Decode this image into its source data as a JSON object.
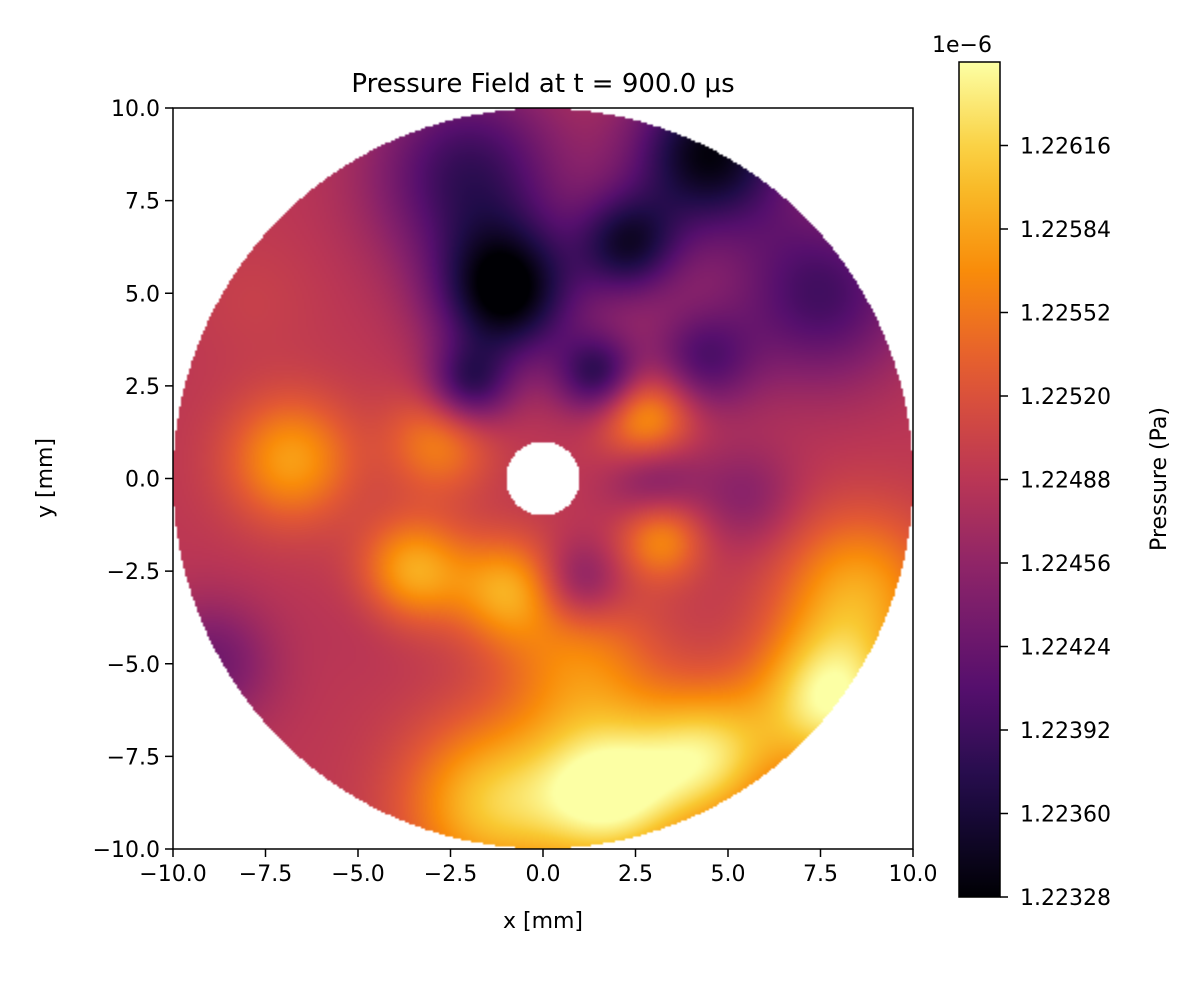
{
  "chart_data": {
    "type": "heatmap",
    "title": "Pressure Field at t = 900.0 µs",
    "xlabel": "x [mm]",
    "ylabel": "y [mm]",
    "xlim": [
      -10,
      10
    ],
    "ylim": [
      -10,
      10
    ],
    "x_ticks": [
      -10.0,
      -7.5,
      -5.0,
      -2.5,
      0.0,
      2.5,
      5.0,
      7.5,
      10.0
    ],
    "y_ticks": [
      -10.0,
      -7.5,
      -5.0,
      -2.5,
      0.0,
      2.5,
      5.0,
      7.5,
      10.0
    ],
    "x_tick_labels": [
      "−10.0",
      "−7.5",
      "−5.0",
      "−2.5",
      "0.0",
      "2.5",
      "5.0",
      "7.5",
      "10.0"
    ],
    "y_tick_labels": [
      "−10.0",
      "−7.5",
      "−5.0",
      "−2.5",
      "0.0",
      "2.5",
      "5.0",
      "7.5",
      "10.0"
    ],
    "domain": {
      "shape": "annulus",
      "outer_radius": 10,
      "inner_radius": 1
    },
    "colormap": "inferno",
    "colorbar": {
      "label": "Pressure (Pa)",
      "offset_text": "1e−6",
      "min": 1.22328,
      "max": 1.22648,
      "ticks": [
        1.22328,
        1.2236,
        1.22392,
        1.22424,
        1.22456,
        1.22488,
        1.2252,
        1.22552,
        1.22584,
        1.22616
      ],
      "tick_labels": [
        "1.22328",
        "1.22360",
        "1.22392",
        "1.22424",
        "1.22456",
        "1.22488",
        "1.22520",
        "1.22552",
        "1.22584",
        "1.22616"
      ]
    },
    "field_features": [
      {
        "x": -1.0,
        "y": 5.0,
        "sigma": 1.3,
        "value": 1.22328
      },
      {
        "x": 4.5,
        "y": 8.8,
        "sigma": 1.5,
        "value": 1.22335
      },
      {
        "x": 2.3,
        "y": 6.3,
        "sigma": 1.0,
        "value": 1.2237
      },
      {
        "x": -2.0,
        "y": 8.2,
        "sigma": 1.8,
        "value": 1.22385
      },
      {
        "x": 1.5,
        "y": 2.8,
        "sigma": 0.8,
        "value": 1.2238
      },
      {
        "x": -2.0,
        "y": 2.5,
        "sigma": 0.8,
        "value": 1.2239
      },
      {
        "x": 7.5,
        "y": 5.0,
        "sigma": 1.7,
        "value": 1.22395
      },
      {
        "x": 4.3,
        "y": 3.2,
        "sigma": 1.0,
        "value": 1.2241
      },
      {
        "x": 3.0,
        "y": 0.0,
        "sigma": 0.9,
        "value": 1.2243
      },
      {
        "x": 1.0,
        "y": -2.8,
        "sigma": 0.8,
        "value": 1.2243
      },
      {
        "x": 5.5,
        "y": -0.5,
        "sigma": 1.0,
        "value": 1.2245
      },
      {
        "x": -7.8,
        "y": 4.8,
        "sigma": 1.2,
        "value": 1.225
      },
      {
        "x": -9.0,
        "y": -5.0,
        "sigma": 1.2,
        "value": 1.2243
      },
      {
        "x": -4.5,
        "y": -3.5,
        "sigma": 1.0,
        "value": 1.2248
      },
      {
        "x": -6.8,
        "y": 0.5,
        "sigma": 1.2,
        "value": 1.2258
      },
      {
        "x": -3.5,
        "y": -2.5,
        "sigma": 1.0,
        "value": 1.2259
      },
      {
        "x": -1.0,
        "y": -3.0,
        "sigma": 1.0,
        "value": 1.2258
      },
      {
        "x": -2.8,
        "y": 1.0,
        "sigma": 1.0,
        "value": 1.2256
      },
      {
        "x": 2.8,
        "y": 1.6,
        "sigma": 0.9,
        "value": 1.2259
      },
      {
        "x": 3.2,
        "y": -1.6,
        "sigma": 0.8,
        "value": 1.2257
      },
      {
        "x": 1.0,
        "y": -5.0,
        "sigma": 1.5,
        "value": 1.2256
      },
      {
        "x": 8.5,
        "y": -3.0,
        "sigma": 1.5,
        "value": 1.2258
      },
      {
        "x": 7.8,
        "y": -6.0,
        "sigma": 1.4,
        "value": 1.2264
      },
      {
        "x": 1.8,
        "y": -8.5,
        "sigma": 1.5,
        "value": 1.22648
      },
      {
        "x": 4.5,
        "y": -7.5,
        "sigma": 1.3,
        "value": 1.2261
      },
      {
        "x": -1.5,
        "y": -8.8,
        "sigma": 1.6,
        "value": 1.226
      }
    ]
  }
}
